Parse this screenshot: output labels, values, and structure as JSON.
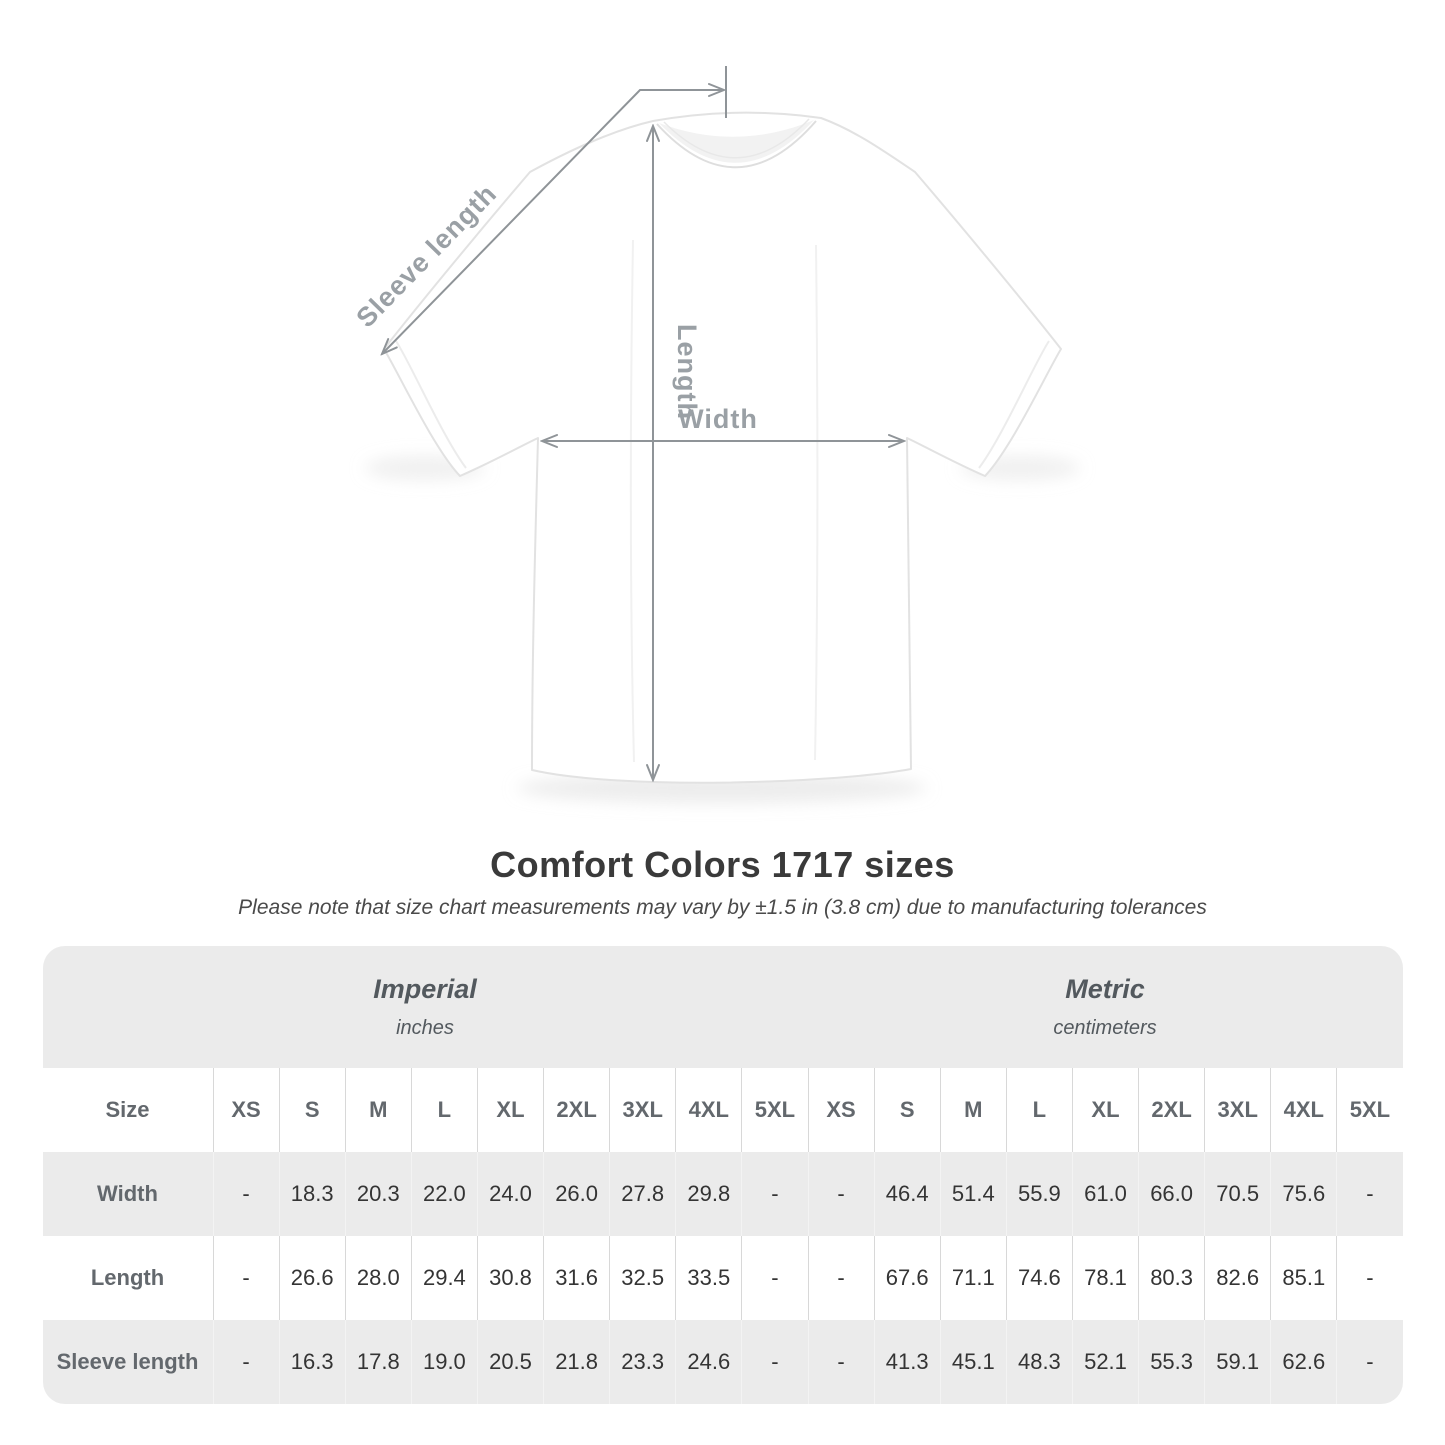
{
  "figure": {
    "sleeve_label": "Sleeve length",
    "length_label": "Length",
    "width_label": "Width"
  },
  "heading": {
    "title": "Comfort Colors 1717 sizes",
    "subtitle": "Please note that size chart measurements may vary by ±1.5 in (3.8 cm) due to manufacturing tolerances"
  },
  "chart_data": {
    "type": "table",
    "title": "Comfort Colors 1717 sizes",
    "note": "Please note that size chart measurements may vary by ±1.5 in (3.8 cm) due to manufacturing tolerances",
    "groups": [
      {
        "label": "Imperial",
        "unit": "inches"
      },
      {
        "label": "Metric",
        "unit": "centimeters"
      }
    ],
    "size_header": "Size",
    "sizes": [
      "XS",
      "S",
      "M",
      "L",
      "XL",
      "2XL",
      "3XL",
      "4XL",
      "5XL"
    ],
    "rows": [
      {
        "label": "Width",
        "imperial": [
          "-",
          "18.3",
          "20.3",
          "22.0",
          "24.0",
          "26.0",
          "27.8",
          "29.8",
          "-"
        ],
        "metric": [
          "-",
          "46.4",
          "51.4",
          "55.9",
          "61.0",
          "66.0",
          "70.5",
          "75.6",
          "-"
        ]
      },
      {
        "label": "Length",
        "imperial": [
          "-",
          "26.6",
          "28.0",
          "29.4",
          "30.8",
          "31.6",
          "32.5",
          "33.5",
          "-"
        ],
        "metric": [
          "-",
          "67.6",
          "71.1",
          "74.6",
          "78.1",
          "80.3",
          "82.6",
          "85.1",
          "-"
        ]
      },
      {
        "label": "Sleeve length",
        "imperial": [
          "-",
          "16.3",
          "17.8",
          "19.0",
          "20.5",
          "21.8",
          "23.3",
          "24.6",
          "-"
        ],
        "metric": [
          "-",
          "41.3",
          "45.1",
          "48.3",
          "52.1",
          "55.3",
          "59.1",
          "62.6",
          "-"
        ]
      }
    ]
  },
  "colors": {
    "table_band_gray": "#ebebeb",
    "annotation_line": "#8f9498",
    "annotation_label": "#9aa0a5",
    "value_text": "#343434",
    "header_text": "#63686d"
  }
}
